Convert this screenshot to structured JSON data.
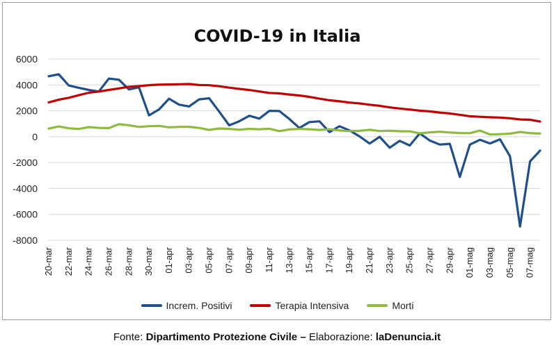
{
  "chart_data": {
    "type": "line",
    "title": "COVID-19 in Italia",
    "xlabel": "",
    "ylabel": "",
    "ylim": [
      -8000,
      6000
    ],
    "yticks": [
      6000,
      4000,
      2000,
      0,
      -2000,
      -4000,
      -6000,
      -8000
    ],
    "grid": true,
    "legend_position": "bottom",
    "x": [
      "20-mar",
      "21-mar",
      "22-mar",
      "23-mar",
      "24-mar",
      "25-mar",
      "26-mar",
      "27-mar",
      "28-mar",
      "29-mar",
      "30-mar",
      "31-mar",
      "01-apr",
      "02-apr",
      "03-apr",
      "04-apr",
      "05-apr",
      "06-apr",
      "07-apr",
      "08-apr",
      "09-apr",
      "10-apr",
      "11-apr",
      "12-apr",
      "13-apr",
      "14-apr",
      "15-apr",
      "16-apr",
      "17-apr",
      "18-apr",
      "19-apr",
      "20-apr",
      "21-apr",
      "22-apr",
      "23-apr",
      "24-apr",
      "25-apr",
      "26-apr",
      "27-apr",
      "28-apr",
      "29-apr",
      "30-apr",
      "01-mag",
      "02-mag",
      "03-mag",
      "04-mag",
      "05-mag",
      "06-mag",
      "07-mag",
      "08-mag"
    ],
    "x_tick_labels": [
      "20-mar",
      "22-mar",
      "24-mar",
      "26-mar",
      "28-mar",
      "30-mar",
      "01-apr",
      "03-apr",
      "05-apr",
      "07-apr",
      "09-apr",
      "11-apr",
      "13-apr",
      "15-apr",
      "17-apr",
      "19-apr",
      "21-apr",
      "23-apr",
      "25-apr",
      "27-apr",
      "29-apr",
      "01-mag",
      "03-mag",
      "05-mag",
      "07-mag"
    ],
    "series": [
      {
        "name": "Increm. Positivi",
        "color": "#1f4e8c",
        "values": [
          4670,
          4821,
          3957,
          3780,
          3612,
          3491,
          4492,
          4401,
          3651,
          3815,
          1648,
          2107,
          2937,
          2477,
          2339,
          2886,
          2972,
          1941,
          880,
          1195,
          1615,
          1396,
          1996,
          1984,
          1363,
          675,
          1127,
          1189,
          355,
          809,
          486,
          20,
          -528,
          -10,
          -851,
          -321,
          -680,
          256,
          -290,
          -608,
          -548,
          -3106,
          -608,
          -239,
          -525,
          -199,
          -1513,
          -6939,
          -1904,
          -1071
        ]
      },
      {
        "name": "Terapia Intensiva",
        "color": "#c00000",
        "values": [
          2655,
          2857,
          3009,
          3204,
          3396,
          3489,
          3612,
          3732,
          3856,
          3906,
          3981,
          4023,
          4035,
          4053,
          4068,
          3994,
          3977,
          3898,
          3792,
          3693,
          3605,
          3497,
          3381,
          3343,
          3260,
          3186,
          3079,
          2936,
          2812,
          2733,
          2635,
          2573,
          2471,
          2384,
          2267,
          2173,
          2102,
          2009,
          1956,
          1863,
          1795,
          1694,
          1578,
          1539,
          1501,
          1479,
          1427,
          1333,
          1311,
          1168
        ]
      },
      {
        "name": "Morti",
        "color": "#8dbb3c",
        "values": [
          627,
          793,
          651,
          601,
          743,
          683,
          662,
          969,
          889,
          756,
          812,
          837,
          727,
          760,
          766,
          681,
          525,
          636,
          604,
          542,
          610,
          570,
          619,
          431,
          566,
          602,
          578,
          525,
          575,
          482,
          433,
          454,
          534,
          437,
          464,
          420,
          415,
          260,
          333,
          382,
          323,
          285,
          269,
          474,
          174,
          195,
          236,
          369,
          274,
          243
        ]
      }
    ]
  },
  "source": {
    "prefix": "Fonte:",
    "agency": "Dipartimento Protezione Civile",
    "dash": "–",
    "elab_label": "Elaborazione:",
    "site": "laDenuncia.it"
  }
}
